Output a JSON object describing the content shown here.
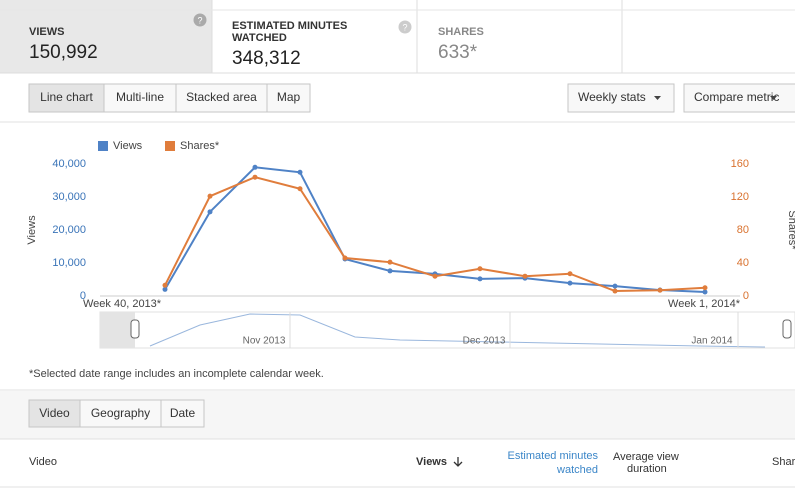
{
  "metrics": [
    {
      "label": "VIEWS",
      "value": "150,992"
    },
    {
      "label": "ESTIMATED MINUTES",
      "label2": "WATCHED",
      "value": "348,312"
    },
    {
      "label": "SHARES",
      "value": "633*"
    }
  ],
  "toolbar": {
    "chart_types": [
      "Line chart",
      "Multi-line",
      "Stacked area",
      "Map"
    ],
    "right": [
      "Weekly stats",
      "Compare metric"
    ]
  },
  "chart_data": {
    "type": "line",
    "y_label": "Views",
    "y2_label": "Shares*",
    "categories": [
      "Week 40, 2013*",
      null,
      null,
      null,
      null,
      null,
      null,
      null,
      null,
      null,
      null,
      null,
      "Week 1, 2014*"
    ],
    "series": [
      {
        "name": "Views",
        "color": "#4f82c6",
        "values": [
          2000,
          25500,
          39000,
          37500,
          11200,
          7600,
          6700,
          5200,
          5400,
          3900,
          3000,
          1800,
          1200
        ]
      },
      {
        "name": "Shares*",
        "color": "#e07d3c",
        "axis": "y2",
        "values": [
          13,
          121,
          144,
          130,
          46,
          41,
          24,
          33,
          24,
          27,
          6,
          7,
          10
        ]
      }
    ],
    "ylim": [
      0,
      40000
    ],
    "yticks": [
      0,
      {
        "value": 10000,
        "label": "10,000"
      },
      {
        "value": 20000,
        "label": "20,000"
      },
      {
        "value": 30000,
        "label": "30,000"
      },
      {
        "value": 40000,
        "label": "40,000"
      }
    ],
    "y2lim": [
      0,
      160
    ],
    "y2ticks": [
      0,
      40,
      80,
      120,
      160
    ],
    "legend": "top-left"
  },
  "navigator": {
    "labels": [
      "Nov 2013",
      "Dec 2013",
      "Jan 2014"
    ]
  },
  "footnote": "*Selected date range includes an incomplete calendar week.",
  "tabs": [
    "Video",
    "Geography",
    "Date"
  ],
  "table": {
    "headers": [
      "Video",
      "Views",
      "Estimated minutes",
      "watched",
      "Average view",
      "duration",
      "Shar"
    ]
  }
}
